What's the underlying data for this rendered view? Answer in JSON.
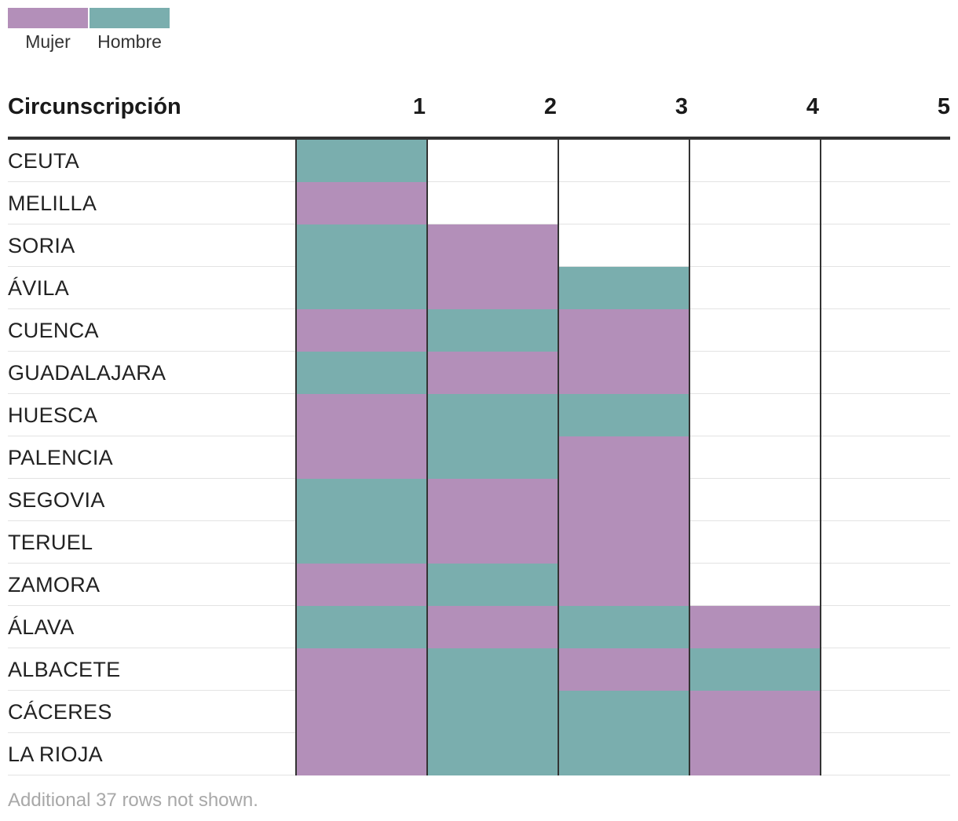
{
  "legend": {
    "items": [
      {
        "label": "Mujer",
        "color": "#b38fb9"
      },
      {
        "label": "Hombre",
        "color": "#7aaeae"
      }
    ]
  },
  "table": {
    "header": "Circunscripción",
    "columns": [
      "1",
      "2",
      "3",
      "4",
      "5"
    ]
  },
  "footnote": "Additional 37 rows not shown.",
  "chart_data": {
    "type": "table",
    "legend": [
      "Mujer",
      "Hombre"
    ],
    "colors": {
      "Mujer": "#b38fb9",
      "Hombre": "#7aaeae"
    },
    "columns": [
      "1",
      "2",
      "3",
      "4",
      "5"
    ],
    "rows": [
      {
        "label": "CEUTA",
        "values": [
          "Hombre"
        ]
      },
      {
        "label": "MELILLA",
        "values": [
          "Mujer"
        ]
      },
      {
        "label": "SORIA",
        "values": [
          "Hombre",
          "Mujer"
        ]
      },
      {
        "label": "ÁVILA",
        "values": [
          "Hombre",
          "Mujer",
          "Hombre"
        ]
      },
      {
        "label": "CUENCA",
        "values": [
          "Mujer",
          "Hombre",
          "Mujer"
        ]
      },
      {
        "label": "GUADALAJARA",
        "values": [
          "Hombre",
          "Mujer",
          "Mujer"
        ]
      },
      {
        "label": "HUESCA",
        "values": [
          "Mujer",
          "Hombre",
          "Hombre"
        ]
      },
      {
        "label": "PALENCIA",
        "values": [
          "Mujer",
          "Hombre",
          "Mujer"
        ]
      },
      {
        "label": "SEGOVIA",
        "values": [
          "Hombre",
          "Mujer",
          "Mujer"
        ]
      },
      {
        "label": "TERUEL",
        "values": [
          "Hombre",
          "Mujer",
          "Mujer"
        ]
      },
      {
        "label": "ZAMORA",
        "values": [
          "Mujer",
          "Hombre",
          "Mujer"
        ]
      },
      {
        "label": "ÁLAVA",
        "values": [
          "Hombre",
          "Mujer",
          "Hombre",
          "Mujer"
        ]
      },
      {
        "label": "ALBACETE",
        "values": [
          "Mujer",
          "Hombre",
          "Mujer",
          "Hombre"
        ]
      },
      {
        "label": "CÁCERES",
        "values": [
          "Mujer",
          "Hombre",
          "Hombre",
          "Mujer"
        ]
      },
      {
        "label": "LA RIOJA",
        "values": [
          "Mujer",
          "Hombre",
          "Hombre",
          "Mujer"
        ]
      }
    ]
  }
}
